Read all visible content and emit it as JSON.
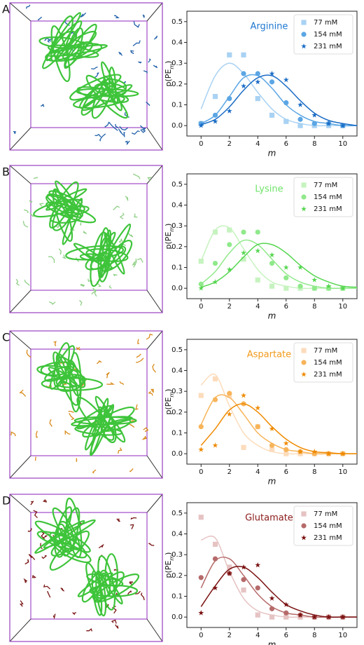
{
  "chart_data": [
    {
      "type": "scatter",
      "panel_label": "A",
      "title": "Arginine",
      "title_color": "#1f78d1",
      "xlabel": "m",
      "ylabel": [
        "p(PE",
        "m",
        ")"
      ],
      "x": [
        0,
        1,
        2,
        3,
        4,
        5,
        6,
        7,
        8,
        9,
        10
      ],
      "fit_x": [
        0,
        1,
        2,
        3,
        4,
        5,
        6,
        7,
        8,
        9,
        10,
        11
      ],
      "xlim": [
        -1,
        11
      ],
      "xticks": [
        0,
        2,
        4,
        6,
        8,
        10
      ],
      "ylim": [
        -0.05,
        0.55
      ],
      "yticks": [
        {
          "value": 0,
          "label": "0.0"
        },
        0.1,
        0.2,
        0.3,
        0.4,
        0.5
      ],
      "legend": "upper right",
      "series": [
        {
          "name": "77 mM",
          "color": "#a9d2f3",
          "marker": "square",
          "values": [
            0.01,
            0.14,
            0.34,
            0.34,
            0.13,
            0.05,
            0.02,
            0,
            0,
            0,
            0
          ],
          "fit": [
            0.08,
            0.24,
            0.3,
            0.25,
            0.16,
            0.08,
            0.03,
            0.01,
            0,
            0,
            0,
            0
          ]
        },
        {
          "name": "154 mM",
          "color": "#5ba6e4",
          "marker": "circle",
          "values": [
            0.01,
            0.05,
            0.13,
            0.25,
            0.25,
            0.21,
            0.11,
            0.03,
            0.01,
            0.01,
            0
          ],
          "fit": [
            0.01,
            0.05,
            0.14,
            0.23,
            0.24,
            0.18,
            0.1,
            0.05,
            0.02,
            0.01,
            0,
            0
          ]
        },
        {
          "name": "231 mM",
          "color": "#1a6cc6",
          "marker": "star",
          "values": [
            0,
            0.02,
            0.07,
            0.19,
            0.21,
            0.25,
            0.22,
            0.1,
            0.05,
            0.01,
            0
          ],
          "fit": [
            0.005,
            0.03,
            0.09,
            0.17,
            0.23,
            0.24,
            0.19,
            0.12,
            0.06,
            0.025,
            0.01,
            0
          ]
        }
      ]
    },
    {
      "type": "scatter",
      "panel_label": "B",
      "title": "Lysine",
      "title_color": "#6ee46a",
      "xlabel": "m",
      "ylabel": [
        "p(PE",
        "m",
        ")"
      ],
      "x": [
        0,
        1,
        2,
        3,
        4,
        5,
        6,
        7,
        8,
        9,
        10
      ],
      "fit_x": [
        0,
        1,
        2,
        3,
        4,
        5,
        6,
        7,
        8,
        9,
        10,
        11
      ],
      "xlim": [
        -1,
        11
      ],
      "xticks": [
        0,
        2,
        4,
        6,
        8,
        10
      ],
      "ylim": [
        -0.05,
        0.55
      ],
      "yticks": [
        {
          "value": 0,
          "label": "0.0"
        },
        0.1,
        0.2,
        0.3,
        0.4,
        0.5
      ],
      "legend": "upper right",
      "series": [
        {
          "name": "77 mM",
          "color": "#c6f3bf",
          "marker": "square",
          "values": [
            0.13,
            0.27,
            0.28,
            0.14,
            0.04,
            0.01,
            0,
            0,
            0,
            0,
            0
          ],
          "fit": [
            0.13,
            0.28,
            0.29,
            0.19,
            0.09,
            0.03,
            0.01,
            0,
            0,
            0,
            0,
            0
          ]
        },
        {
          "name": "154 mM",
          "color": "#90e98b",
          "marker": "circle",
          "values": [
            0.02,
            0.12,
            0.21,
            0.27,
            0.27,
            0.12,
            0.05,
            0.01,
            0,
            0,
            0
          ],
          "fit": [
            0.02,
            0.08,
            0.17,
            0.23,
            0.21,
            0.14,
            0.07,
            0.03,
            0.01,
            0,
            0,
            0
          ]
        },
        {
          "name": "231 mM",
          "color": "#55d64f",
          "marker": "star",
          "values": [
            0,
            0.03,
            0.09,
            0.17,
            0.18,
            0.16,
            0.1,
            0.1,
            0.04,
            0.01,
            0
          ],
          "fit": [
            0.005,
            0.03,
            0.08,
            0.15,
            0.21,
            0.21,
            0.17,
            0.11,
            0.06,
            0.03,
            0.01,
            0.005
          ]
        }
      ]
    },
    {
      "type": "scatter",
      "panel_label": "C",
      "title": "Aspartate",
      "title_color": "#f29a1a",
      "xlabel": "m",
      "ylabel": [
        "p(PE",
        "m",
        ")"
      ],
      "x": [
        0,
        1,
        2,
        3,
        4,
        5,
        6,
        7,
        8,
        9,
        10
      ],
      "fit_x": [
        0,
        1,
        2,
        3,
        4,
        5,
        6,
        7,
        8,
        9,
        10,
        11
      ],
      "xlim": [
        -1,
        11
      ],
      "xticks": [
        0,
        2,
        4,
        6,
        8,
        10
      ],
      "ylim": [
        -0.05,
        0.55
      ],
      "yticks": [
        {
          "value": 0,
          "label": "0.0"
        },
        0.1,
        0.2,
        0.3,
        0.4,
        0.5
      ],
      "legend": "upper right",
      "series": [
        {
          "name": "77 mM",
          "color": "#fcdcbc",
          "marker": "square",
          "values": [
            0.28,
            0.36,
            0.28,
            0.03,
            0.13,
            0.02,
            0,
            0,
            0,
            0,
            0
          ],
          "fit": [
            0.33,
            0.38,
            0.23,
            0.1,
            0.04,
            0.01,
            0,
            0,
            0,
            0,
            0,
            0
          ]
        },
        {
          "name": "154 mM",
          "color": "#f7b45a",
          "marker": "circle",
          "values": [
            0.13,
            0.26,
            0.29,
            0.24,
            0.13,
            0.04,
            0.02,
            0.01,
            0,
            0,
            0
          ],
          "fit": [
            0.14,
            0.27,
            0.27,
            0.19,
            0.1,
            0.05,
            0.02,
            0.01,
            0,
            0,
            0,
            0
          ]
        },
        {
          "name": "231 mM",
          "color": "#ef8a00",
          "marker": "star",
          "values": [
            0.02,
            0.04,
            0.19,
            0.28,
            0.22,
            0.12,
            0.05,
            0.01,
            0.01,
            0,
            0
          ],
          "fit": [
            0.04,
            0.12,
            0.21,
            0.24,
            0.2,
            0.13,
            0.07,
            0.03,
            0.01,
            0.005,
            0,
            0
          ]
        }
      ]
    },
    {
      "type": "scatter",
      "panel_label": "D",
      "title": "Glutamate",
      "title_color": "#8b1a1a",
      "xlabel": "m",
      "ylabel": [
        "p(PE",
        "m",
        ")"
      ],
      "x": [
        0,
        1,
        2,
        3,
        4,
        5,
        6,
        7,
        8,
        9,
        10
      ],
      "fit_x": [
        0,
        1,
        2,
        3,
        4,
        5,
        6,
        7,
        8,
        9,
        10,
        11
      ],
      "xlim": [
        -1,
        11
      ],
      "xticks": [
        0,
        2,
        4,
        6,
        8,
        10
      ],
      "ylim": [
        -0.05,
        0.55
      ],
      "yticks": [
        {
          "value": 0,
          "label": "0.0"
        },
        0.1,
        0.2,
        0.3,
        0.4,
        0.5
      ],
      "legend": "upper right",
      "series": [
        {
          "name": "77 mM",
          "color": "#e6c3c3",
          "marker": "square",
          "values": [
            0.48,
            0.35,
            0.24,
            0.13,
            0.01,
            0,
            0,
            0,
            0,
            0,
            0
          ],
          "fit": [
            0.37,
            0.38,
            0.22,
            0.09,
            0.03,
            0.01,
            0,
            0,
            0,
            0,
            0,
            0
          ]
        },
        {
          "name": "154 mM",
          "color": "#b66a6a",
          "marker": "circle",
          "values": [
            0.19,
            0.28,
            0.21,
            0.18,
            0.14,
            0.04,
            0.02,
            0.01,
            0,
            0,
            0
          ],
          "fit": [
            0.14,
            0.27,
            0.28,
            0.2,
            0.11,
            0.05,
            0.02,
            0.01,
            0,
            0,
            0,
            0
          ]
        },
        {
          "name": "231 mM",
          "color": "#7a1010",
          "marker": "star",
          "values": [
            0.02,
            0.14,
            0.21,
            0.24,
            0.25,
            0.09,
            0.06,
            0.01,
            0,
            0,
            0
          ],
          "fit": [
            0.05,
            0.15,
            0.23,
            0.24,
            0.19,
            0.12,
            0.06,
            0.03,
            0.01,
            0,
            0,
            0
          ]
        }
      ]
    }
  ]
}
